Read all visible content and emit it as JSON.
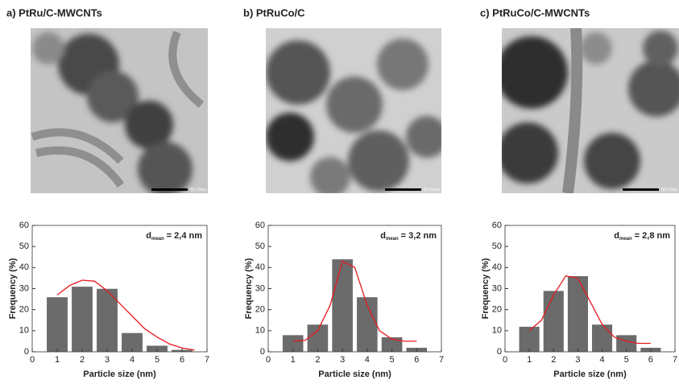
{
  "chart_data": [
    {
      "type": "bar",
      "title": "a) PtRu/C-MWCNTs",
      "scale_bar": "50.0nm",
      "x": [
        1,
        2,
        3,
        4,
        5,
        6
      ],
      "values": [
        26,
        31,
        30,
        9,
        3,
        1
      ],
      "color": "#6b6b6b",
      "fit": {
        "color": "#e8191e",
        "x": [
          1,
          1.5,
          2,
          2.5,
          3,
          3.5,
          4,
          4.5,
          5,
          5.5,
          6,
          6.5
        ],
        "values": [
          27,
          31.5,
          34,
          33.5,
          29,
          23,
          17,
          11,
          7,
          3.7,
          1.8,
          0.8
        ]
      },
      "annotation": {
        "symbol": "d",
        "subscript": "mean",
        "text": "= 2,4 nm"
      },
      "x_label": "Particle size (nm)",
      "y_label": "Frequency (%)",
      "xlim": [
        0,
        7
      ],
      "xticks": [
        0,
        1,
        2,
        3,
        4,
        5,
        6,
        7
      ],
      "ylim": [
        0,
        60
      ],
      "yticks": [
        0,
        10,
        20,
        30,
        40,
        50,
        60
      ]
    },
    {
      "type": "bar",
      "title": "b) PtRuCo/C",
      "scale_bar": "50.0nm",
      "x": [
        1,
        2,
        3,
        4,
        5,
        6
      ],
      "values": [
        8,
        13,
        44,
        26,
        7,
        2
      ],
      "color": "#6b6b6b",
      "fit": {
        "color": "#e8191e",
        "x": [
          1,
          1.5,
          2,
          2.5,
          3,
          3.5,
          4,
          4.5,
          5,
          5.5,
          6
        ],
        "values": [
          5,
          5.5,
          10,
          22,
          43,
          40,
          22,
          10,
          6,
          5,
          5
        ]
      },
      "annotation": {
        "symbol": "d",
        "subscript": "mean",
        "text": "= 3,2 nm"
      },
      "x_label": "Particle size (nm)",
      "y_label": "Frequency (%)",
      "xlim": [
        0,
        7
      ],
      "xticks": [
        0,
        1,
        2,
        3,
        4,
        5,
        6,
        7
      ],
      "ylim": [
        0,
        60
      ],
      "yticks": [
        0,
        10,
        20,
        30,
        40,
        50,
        60
      ]
    },
    {
      "type": "bar",
      "title": "c) PtRuCo/C-MWCNTs",
      "scale_bar": "50.0nm",
      "x": [
        1,
        2,
        3,
        4,
        5,
        6
      ],
      "values": [
        12,
        29,
        36,
        13,
        8,
        2
      ],
      "color": "#6b6b6b",
      "fit": {
        "color": "#e8191e",
        "x": [
          1,
          1.5,
          2,
          2.5,
          3,
          3.5,
          4,
          4.5,
          5,
          5.5,
          6
        ],
        "values": [
          10,
          15,
          27,
          36,
          35,
          24,
          13,
          7,
          5,
          4,
          4
        ]
      },
      "annotation": {
        "symbol": "d",
        "subscript": "mean",
        "text": "= 2,8 nm"
      },
      "x_label": "Particle size (nm)",
      "y_label": "Frequency (%)",
      "xlim": [
        0,
        7
      ],
      "xticks": [
        0,
        1,
        2,
        3,
        4,
        5,
        6,
        7
      ],
      "ylim": [
        0,
        60
      ],
      "yticks": [
        0,
        10,
        20,
        30,
        40,
        50,
        60
      ]
    }
  ]
}
